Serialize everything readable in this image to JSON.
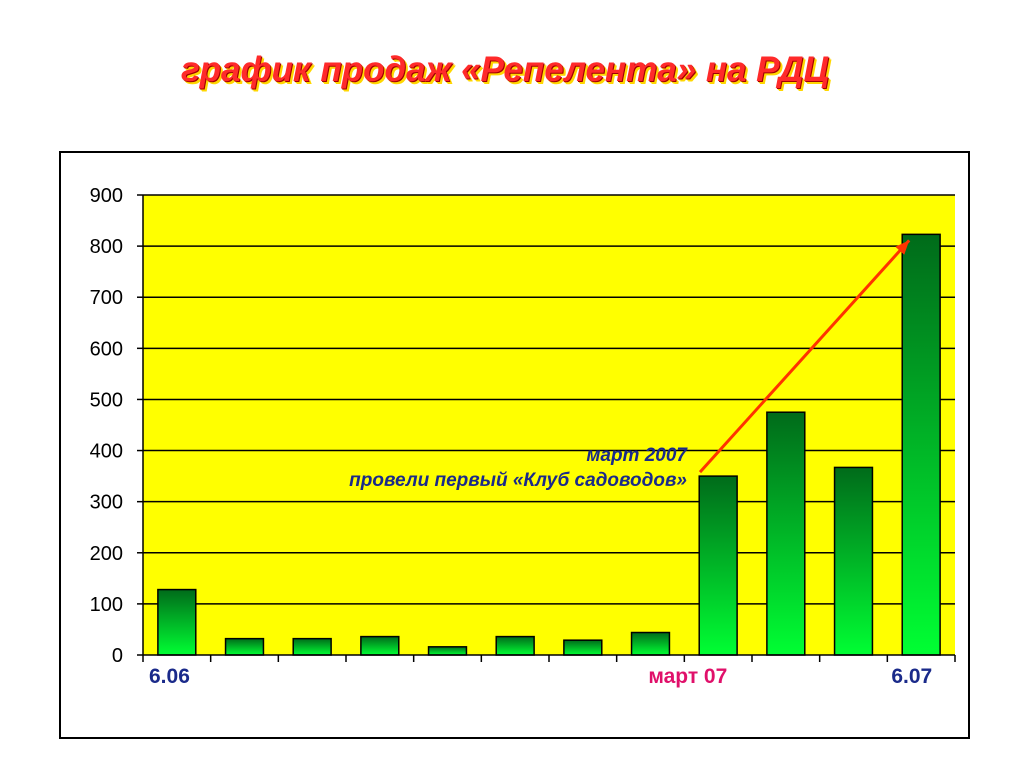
{
  "page": {
    "title": "график продаж «Репелента» на РДЦ"
  },
  "chart_data": {
    "type": "bar",
    "title": "",
    "xlabel": "",
    "ylabel": "",
    "ylim": [
      0,
      900
    ],
    "yticks": [
      0,
      100,
      200,
      300,
      400,
      500,
      600,
      700,
      800,
      900
    ],
    "grid": true,
    "plot_background": "#ffff00",
    "bar_color_top": "#006b1a",
    "bar_color_bottom": "#00ff33",
    "categories": [
      "",
      "",
      "",
      "",
      "",
      "",
      "",
      "",
      "",
      "",
      "",
      ""
    ],
    "values": [
      128,
      32,
      32,
      36,
      16,
      36,
      29,
      44,
      350,
      475,
      367,
      823
    ],
    "x_labels": [
      {
        "text": "6.06",
        "after_category": 0,
        "color": "#1a2a8a"
      },
      {
        "text": "март 07",
        "after_category": 8,
        "color": "#e0106a"
      },
      {
        "text": "6.07",
        "after_category": 11,
        "color": "#1a2a8a"
      }
    ],
    "annotation": {
      "line1": "март 2007",
      "line2": "провели первый «Клуб садоводов»",
      "arrow_color": "#ff3300"
    }
  }
}
